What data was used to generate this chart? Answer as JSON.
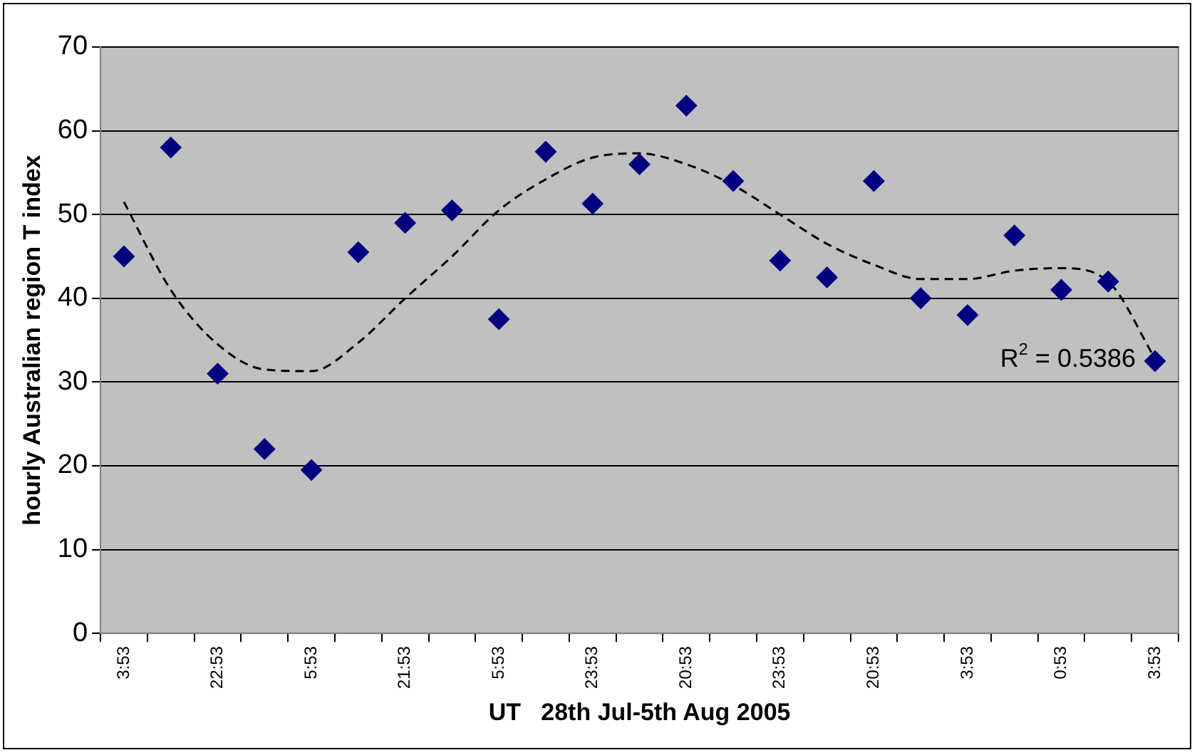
{
  "chart_data": {
    "type": "scatter",
    "xlabel": "UT   28th Jul-5th Aug 2005",
    "ylabel": "hourly Australian region T index",
    "categories": [
      "3:53",
      null,
      "22:53",
      null,
      "5:53",
      null,
      "21:53",
      null,
      "5:53",
      null,
      "23:53",
      null,
      "20:53",
      null,
      "23:53",
      null,
      "20:53",
      null,
      "3:53",
      null,
      "0:53",
      null,
      "3:53"
    ],
    "series": [
      {
        "color": "#000080",
        "marker": "diamond",
        "values": [
          45,
          58,
          31,
          22,
          19.5,
          45.5,
          49,
          50.5,
          37.5,
          57.5,
          51.3,
          56,
          63,
          54,
          44.5,
          42.5,
          54,
          40,
          38,
          47.5,
          41,
          42,
          32.5
        ]
      },
      {
        "type": "line",
        "color": "#000000",
        "marker": "none",
        "line_style": "dashed",
        "values": [
          51.5,
          41,
          34.5,
          31.5,
          31.3,
          34.7,
          40,
          45,
          50.5,
          54.2,
          56.8,
          57.3,
          56,
          53.5,
          50,
          46.5,
          44,
          42.3,
          42.3,
          43.3,
          43.6,
          42,
          32.8
        ]
      }
    ],
    "ylim": [
      0,
      70
    ],
    "yticks": [
      0,
      10,
      20,
      30,
      40,
      50,
      60,
      70
    ],
    "grid": "y",
    "legend": false,
    "annotations": [
      "R$^{2}$ = 0.5386"
    ]
  }
}
